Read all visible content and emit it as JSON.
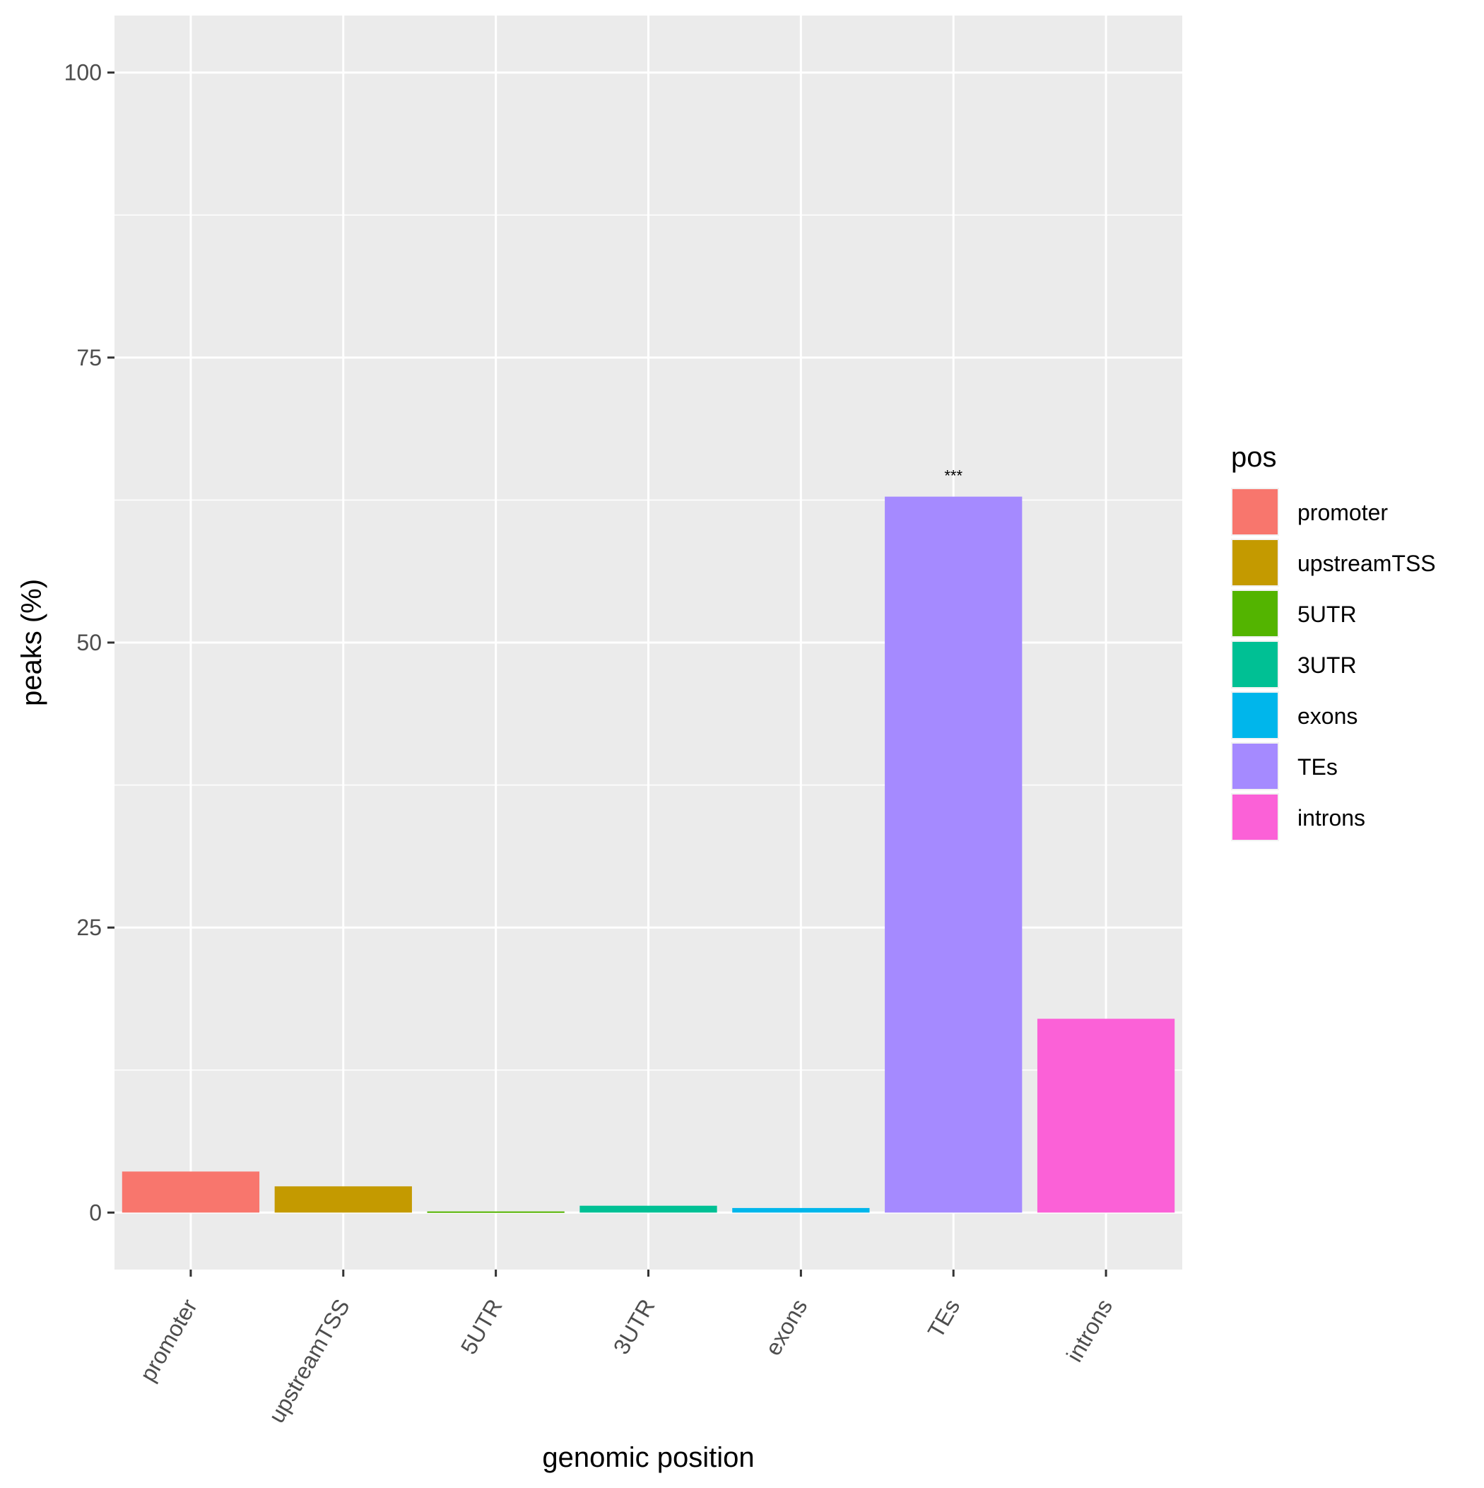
{
  "chart_data": {
    "type": "bar",
    "categories": [
      "promoter",
      "upstreamTSS",
      "5UTR",
      "3UTR",
      "exons",
      "TEs",
      "introns"
    ],
    "values": [
      3.6,
      2.3,
      0.1,
      0.6,
      0.4,
      62.8,
      17.0
    ],
    "colors": [
      "#F8766D",
      "#C49A00",
      "#53B400",
      "#00C094",
      "#00B6EB",
      "#A58AFF",
      "#FB61D7"
    ],
    "annotations": [
      {
        "category": "TEs",
        "text": "***"
      }
    ],
    "xlabel": "genomic position",
    "ylabel": "peaks (%)",
    "yticks": [
      0,
      25,
      50,
      75,
      100
    ],
    "ylim": [
      -5,
      105
    ],
    "grid": true,
    "legend": {
      "title": "pos",
      "position": "right",
      "items": [
        "promoter",
        "upstreamTSS",
        "5UTR",
        "3UTR",
        "exons",
        "TEs",
        "introns"
      ]
    }
  }
}
